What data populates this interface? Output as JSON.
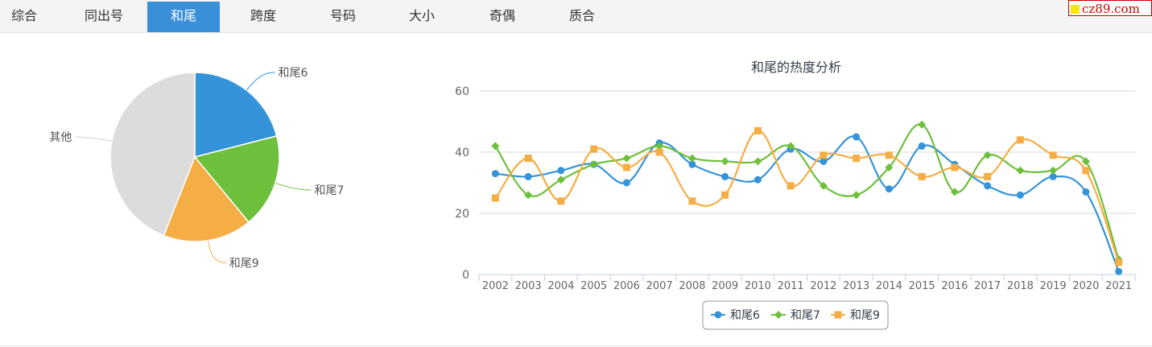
{
  "tabs": [
    {
      "label": "综合",
      "active": false
    },
    {
      "label": "同出号",
      "active": false
    },
    {
      "label": "和尾",
      "active": true
    },
    {
      "label": "跨度",
      "active": false
    },
    {
      "label": "号码",
      "active": false
    },
    {
      "label": "大小",
      "active": false
    },
    {
      "label": "奇偶",
      "active": false
    },
    {
      "label": "质合",
      "active": false
    }
  ],
  "logo": {
    "text": "cz89.com"
  },
  "colors": {
    "accent": "#3a8fd9",
    "s1": "#3493d9",
    "s2": "#6ebf3b",
    "s3": "#f5ad45",
    "other": "#dcdcdc"
  },
  "chart_data": [
    {
      "type": "pie",
      "slices": [
        {
          "label": "和尾6",
          "value": 21
        },
        {
          "label": "和尾7",
          "value": 18
        },
        {
          "label": "和尾9",
          "value": 17
        },
        {
          "label": "其他",
          "value": 44
        }
      ]
    },
    {
      "type": "line",
      "title": "和尾的热度分析",
      "x": [
        "2002",
        "2003",
        "2004",
        "2005",
        "2006",
        "2007",
        "2008",
        "2009",
        "2010",
        "2011",
        "2012",
        "2013",
        "2014",
        "2015",
        "2016",
        "2017",
        "2018",
        "2019",
        "2020",
        "2021"
      ],
      "ylim": [
        0,
        60
      ],
      "yticks": [
        0,
        20,
        40,
        60
      ],
      "grid": true,
      "legend": "bottom-center",
      "series": [
        {
          "name": "和尾6",
          "marker": "circle",
          "values": [
            33,
            32,
            34,
            36,
            30,
            43,
            36,
            32,
            31,
            41,
            37,
            45,
            28,
            42,
            36,
            29,
            26,
            32,
            27,
            1
          ]
        },
        {
          "name": "和尾7",
          "marker": "diamond",
          "values": [
            42,
            26,
            31,
            36,
            38,
            42,
            38,
            37,
            37,
            42,
            29,
            26,
            35,
            49,
            27,
            39,
            34,
            34,
            37,
            5
          ]
        },
        {
          "name": "和尾9",
          "marker": "square",
          "values": [
            25,
            38,
            24,
            41,
            35,
            40,
            24,
            26,
            47,
            29,
            39,
            38,
            39,
            32,
            35,
            32,
            44,
            39,
            34,
            4
          ]
        }
      ]
    }
  ]
}
